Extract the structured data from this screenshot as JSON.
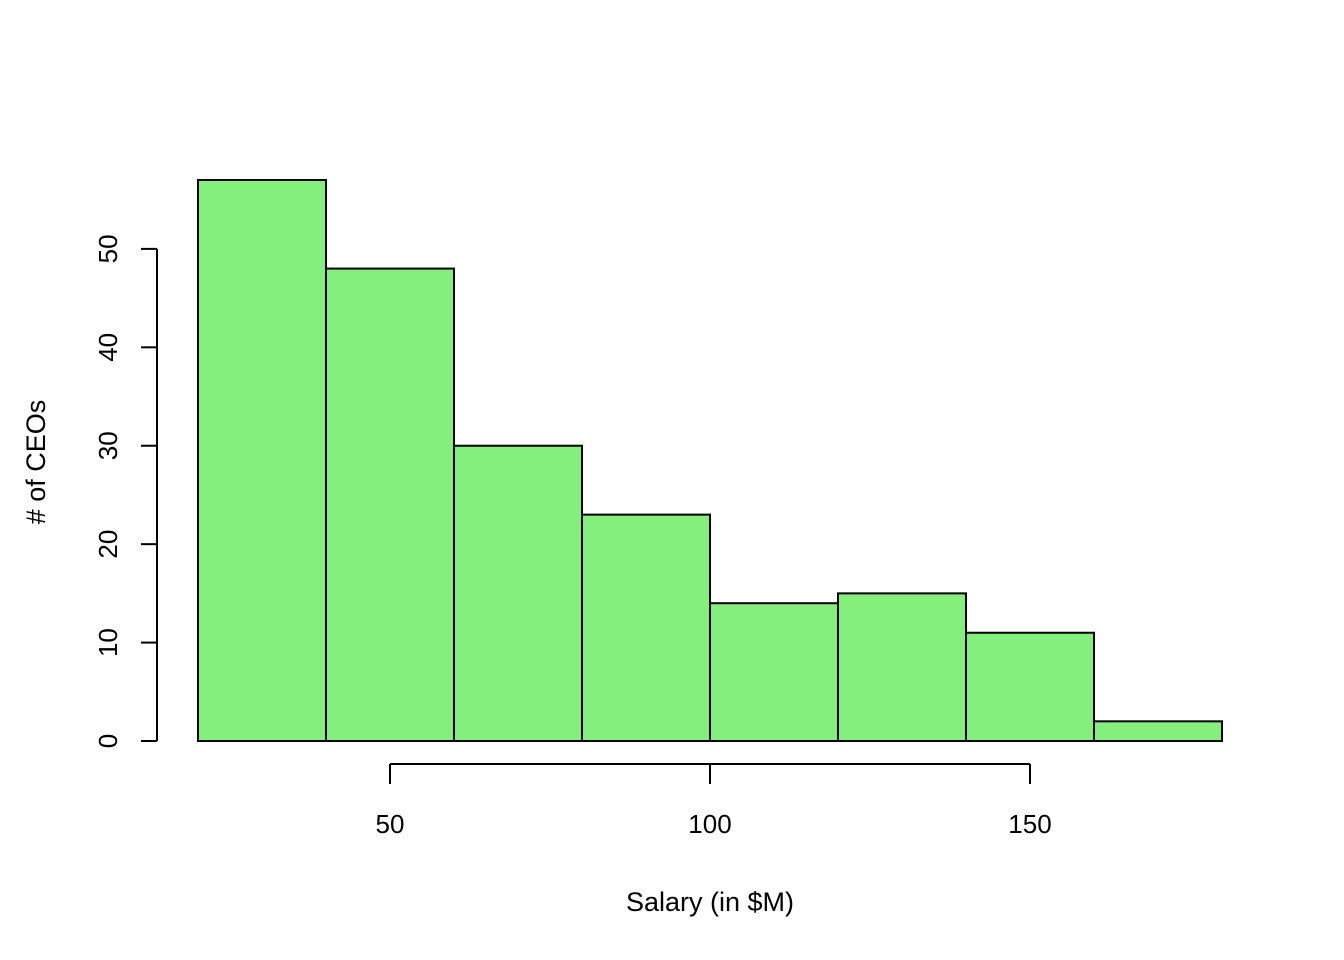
{
  "chart_data": {
    "type": "bar",
    "subtype": "histogram",
    "title": "",
    "xlabel": "Salary (in $M)",
    "ylabel": "# of CEOs",
    "bins": [
      {
        "start": 20,
        "end": 40,
        "count": 57
      },
      {
        "start": 40,
        "end": 60,
        "count": 48
      },
      {
        "start": 60,
        "end": 80,
        "count": 30
      },
      {
        "start": 80,
        "end": 100,
        "count": 23
      },
      {
        "start": 100,
        "end": 120,
        "count": 14
      },
      {
        "start": 120,
        "end": 140,
        "count": 15
      },
      {
        "start": 140,
        "end": 160,
        "count": 11
      },
      {
        "start": 160,
        "end": 180,
        "count": 2
      }
    ],
    "x_ticks": [
      50,
      100,
      150
    ],
    "y_ticks": [
      0,
      10,
      20,
      30,
      40,
      50
    ],
    "xlim": [
      20,
      180
    ],
    "ylim": [
      0,
      57
    ],
    "grid": false,
    "legend": "none",
    "bar_color": "#84EF7D",
    "edge_color": "#000000"
  }
}
